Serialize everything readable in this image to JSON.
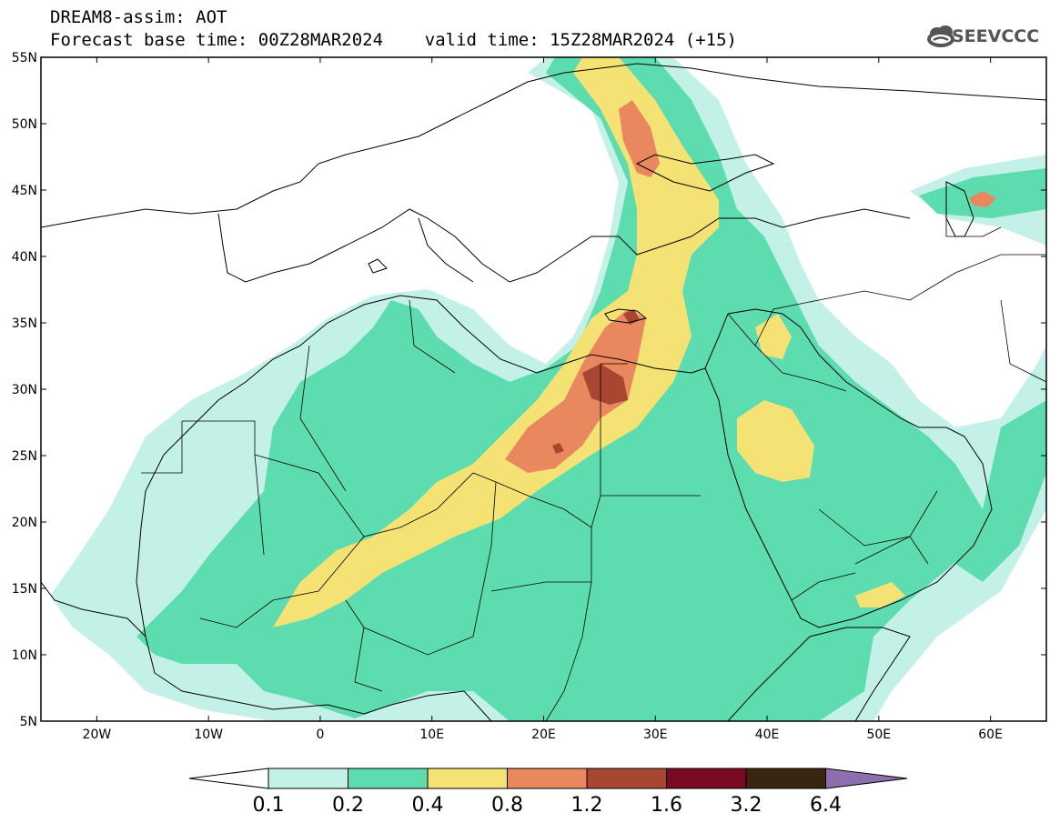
{
  "title": {
    "line1": "DREAM8-assim: AOT",
    "line2": "Forecast base time: 00Z28MAR2024    valid time: 15Z28MAR2024 (+15)"
  },
  "logo": {
    "text": "SEEVCCC",
    "icon": "cloud-icon"
  },
  "map": {
    "projection": "lat-lon",
    "lon_range": [
      -25,
      65
    ],
    "lat_range": [
      5,
      55
    ],
    "x_ticks": [
      "20W",
      "10W",
      "0",
      "10E",
      "20E",
      "30E",
      "40E",
      "50E",
      "60E"
    ],
    "y_ticks": [
      "55N",
      "50N",
      "45N",
      "40N",
      "35N",
      "30N",
      "25N",
      "20N",
      "15N",
      "10N",
      "5N"
    ]
  },
  "colorbar": {
    "labels": [
      "0.1",
      "0.2",
      "0.4",
      "0.8",
      "1.2",
      "1.6",
      "3.2",
      "6.4"
    ],
    "colors": [
      "#ffffff",
      "#c4f1e7",
      "#5ddcb0",
      "#f4e374",
      "#e9885e",
      "#a74631",
      "#7a0a22",
      "#3a2510",
      "#8e6fae"
    ]
  }
}
